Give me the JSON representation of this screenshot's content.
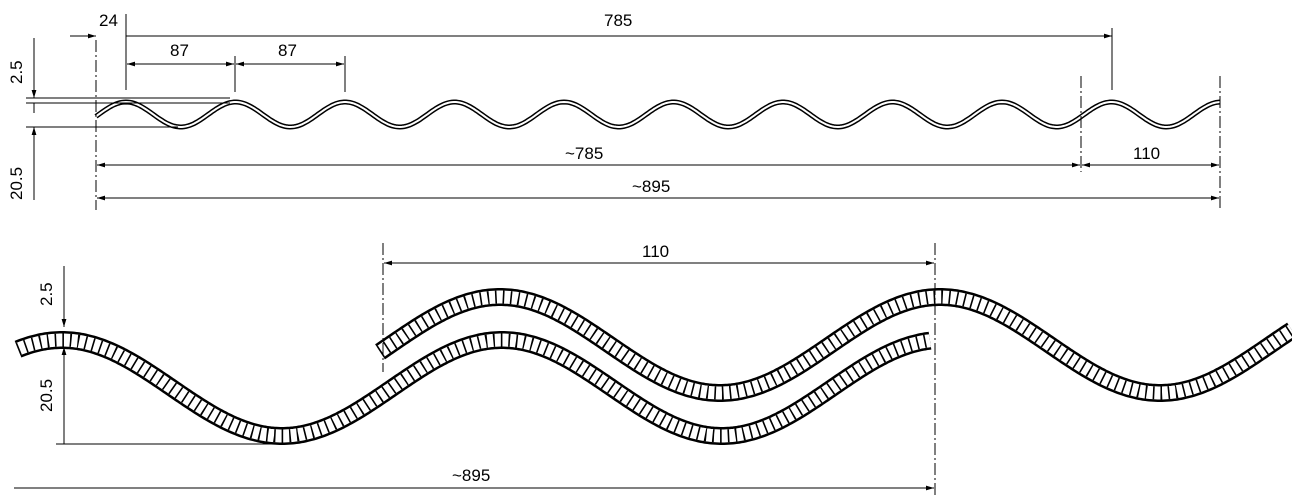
{
  "top_view": {
    "dims": {
      "start_offset": "24",
      "overall_top": "785",
      "pitch_1": "87",
      "pitch_2": "87",
      "thickness": "2.5",
      "height": "20.5",
      "cover_width": "~785",
      "overlap": "110",
      "total_width": "~895"
    }
  },
  "detail_view": {
    "dims": {
      "overlap": "110",
      "thickness": "2.5",
      "height": "20.5",
      "total_width": "~895"
    }
  }
}
